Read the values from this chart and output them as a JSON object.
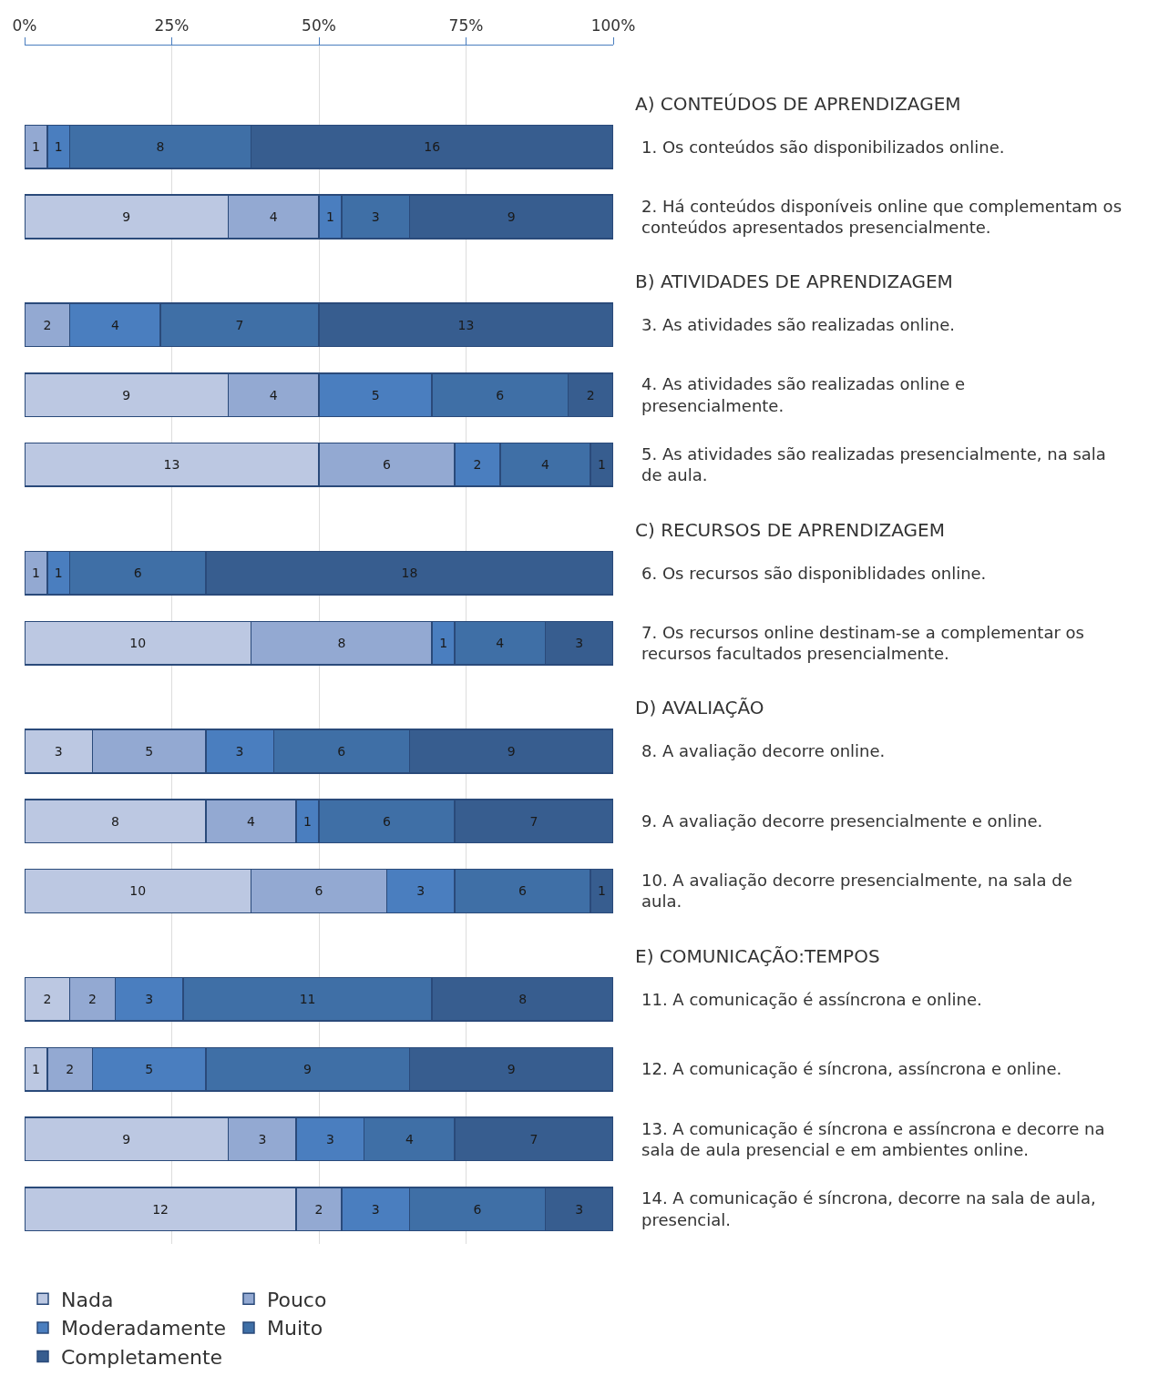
{
  "chart_data": {
    "type": "bar",
    "orientation": "horizontal",
    "stacked": true,
    "data_labels": true,
    "grid": "x",
    "legend": "bottom left",
    "categories": [
      "1. Os conteúdos são disponibilizados online.",
      "2. Há conteúdos disponíveis online que complementam os conteúdos apresentados presencialmente.",
      "3. As atividades são realizadas online.",
      "4. As atividades são realizadas online e presencialmente.",
      "5. As atividades são realizadas presencialmente, na sala de aula.",
      "6. Os recursos são disponiblidades online.",
      "7. Os recursos online destinam-se a complementar os recursos facultados presencialmente.",
      "8. A avaliação decorre online.",
      "9. A avaliação decorre presencialmente e online.",
      "10. A avaliação decorre presencialmente, na sala de aula.",
      "11. A comunicação é assíncrona e online.",
      "12. A comunicação é síncrona, assíncrona e online.",
      "13. A comunicação é síncrona e assíncrona e decorre na sala de aula presencial e em ambientes online.",
      "14. A comunicação é síncrona, decorre na sala de aula, presencial."
    ],
    "xlim": [
      0,
      26
    ],
    "x2lim": [
      0,
      100
    ],
    "x2ticks": [
      {
        "value": 0,
        "label": "0%"
      },
      {
        "value": 25,
        "label": "25%"
      },
      {
        "value": 50,
        "label": "50%"
      },
      {
        "value": 75,
        "label": "75%"
      },
      {
        "value": 100,
        "label": "100%"
      }
    ],
    "series": [
      {
        "name": "Nada",
        "color": "#bcc8e2",
        "values": [
          null,
          9,
          null,
          9,
          13,
          null,
          10,
          3,
          8,
          10,
          2,
          1,
          9,
          12
        ]
      },
      {
        "name": "Pouco",
        "color": "#93a9d2",
        "values": [
          1,
          4,
          2,
          4,
          6,
          1,
          8,
          5,
          4,
          6,
          2,
          2,
          3,
          2
        ]
      },
      {
        "name": "Moderadamente",
        "color": "#4a7ebf",
        "values": [
          1,
          1,
          4,
          5,
          2,
          1,
          1,
          3,
          1,
          3,
          3,
          5,
          3,
          3
        ]
      },
      {
        "name": "Muito",
        "color": "#3f6fa6",
        "values": [
          8,
          3,
          7,
          6,
          4,
          6,
          4,
          6,
          6,
          6,
          11,
          9,
          4,
          6
        ]
      },
      {
        "name": "Completamente",
        "color": "#375d8f",
        "values": [
          16,
          9,
          13,
          2,
          1,
          18,
          3,
          9,
          7,
          1,
          8,
          9,
          7,
          3
        ]
      }
    ],
    "annotations": [
      "A) CONTEÚDOS DE APRENDIZAGEM",
      "B) ATIVIDADES DE APRENDIZAGEM",
      "C) RECURSOS DE APRENDIZAGEM",
      "D) AVALIAÇÃO",
      "E) COMUNICAÇÃO:TEMPOS"
    ]
  }
}
